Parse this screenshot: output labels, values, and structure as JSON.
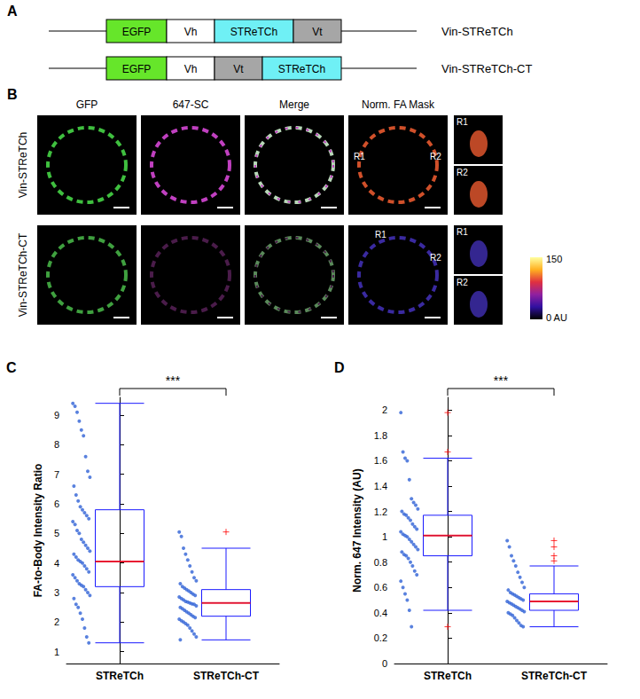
{
  "panel_A": {
    "label": "A",
    "constructs": [
      {
        "name": "Vin-STReTCh",
        "domains": [
          {
            "text": "EGFP",
            "color": "#66e62a"
          },
          {
            "text": "Vh",
            "color": "#ffffff"
          },
          {
            "text": "STReTCh",
            "color": "#6ff0f5"
          },
          {
            "text": "Vt",
            "color": "#a6a6a6"
          }
        ]
      },
      {
        "name": "Vin-STReTCh-CT",
        "domains": [
          {
            "text": "EGFP",
            "color": "#66e62a"
          },
          {
            "text": "Vh",
            "color": "#ffffff"
          },
          {
            "text": "Vt",
            "color": "#a6a6a6"
          },
          {
            "text": "STReTCh",
            "color": "#6ff0f5"
          }
        ]
      }
    ]
  },
  "panel_B": {
    "label": "B",
    "columns": [
      "GFP",
      "647-SC",
      "Merge",
      "Norm. FA Mask"
    ],
    "rows": [
      {
        "name": "Vin-STReTCh",
        "regions": [
          "R1",
          "R2"
        ]
      },
      {
        "name": "Vin-STReTCh-CT",
        "regions": [
          "R1",
          "R2"
        ]
      }
    ],
    "colorbar_labels": [
      "150",
      "0 AU"
    ]
  },
  "chart_data": [
    {
      "label": "C",
      "type": "boxplot",
      "categories": [
        "STReTCh",
        "STReTCh-CT"
      ],
      "ylabel": "FA-to-Body Intensity Ratio",
      "ylim": [
        0.6,
        9.6
      ],
      "yticks": [
        1,
        2,
        3,
        4,
        5,
        6,
        7,
        8,
        9
      ],
      "boxes": [
        [
          1.3,
          3.2,
          4.05,
          5.8,
          9.4
        ],
        [
          1.4,
          2.2,
          2.65,
          3.1,
          4.5
        ]
      ],
      "outliers": [
        [],
        [
          5.05
        ]
      ],
      "points": [
        [
          9.4,
          9.3,
          9.1,
          8.8,
          8.5,
          8.3,
          7.6,
          7.1,
          6.9,
          6.6,
          6.3,
          6.1,
          5.9,
          5.8,
          5.7,
          5.6,
          5.5,
          5.4,
          5.3,
          5.1,
          5.0,
          4.8,
          4.7,
          4.6,
          4.5,
          4.4,
          4.3,
          4.2,
          4.1,
          4.05,
          4.0,
          3.9,
          3.8,
          3.7,
          3.6,
          3.5,
          3.4,
          3.3,
          3.25,
          3.2,
          3.1,
          3.0,
          2.9,
          2.8,
          2.6,
          2.5,
          2.3,
          2.1,
          1.8,
          1.5,
          1.3
        ],
        [
          5.05,
          4.9,
          4.5,
          4.3,
          4.1,
          3.9,
          3.7,
          3.5,
          3.4,
          3.3,
          3.2,
          3.15,
          3.1,
          3.05,
          3.0,
          2.95,
          2.9,
          2.85,
          2.8,
          2.75,
          2.7,
          2.68,
          2.65,
          2.62,
          2.6,
          2.55,
          2.5,
          2.45,
          2.4,
          2.35,
          2.3,
          2.25,
          2.2,
          2.15,
          2.1,
          2.05,
          2.0,
          1.95,
          1.9,
          1.8,
          1.7,
          1.6,
          1.5,
          1.4
        ]
      ],
      "annotation": "***"
    },
    {
      "label": "D",
      "type": "boxplot",
      "categories": [
        "STReTCh",
        "STReTCh-CT"
      ],
      "ylabel": "Norm. 647 Intensity (AU)",
      "ylim": [
        0,
        2.1
      ],
      "yticks": [
        0,
        0.2,
        0.4,
        0.6,
        0.8,
        1,
        1.2,
        1.4,
        1.6,
        1.8,
        2
      ],
      "boxes": [
        [
          0.42,
          0.85,
          1.01,
          1.17,
          1.62
        ],
        [
          0.29,
          0.42,
          0.49,
          0.55,
          0.77
        ]
      ],
      "outliers": [
        [
          0.29,
          1.67,
          1.98
        ],
        [
          0.81,
          0.85,
          0.92,
          0.97
        ]
      ],
      "points": [
        [
          1.98,
          1.67,
          1.62,
          1.6,
          1.45,
          1.3,
          1.27,
          1.25,
          1.22,
          1.2,
          1.18,
          1.17,
          1.15,
          1.13,
          1.1,
          1.08,
          1.06,
          1.04,
          1.02,
          1.01,
          1.0,
          0.98,
          0.96,
          0.94,
          0.92,
          0.9,
          0.88,
          0.86,
          0.85,
          0.83,
          0.8,
          0.77,
          0.73,
          0.7,
          0.65,
          0.6,
          0.55,
          0.5,
          0.42,
          0.29
        ],
        [
          0.97,
          0.92,
          0.85,
          0.81,
          0.77,
          0.72,
          0.68,
          0.64,
          0.6,
          0.58,
          0.56,
          0.55,
          0.54,
          0.53,
          0.52,
          0.51,
          0.5,
          0.49,
          0.48,
          0.47,
          0.46,
          0.45,
          0.44,
          0.43,
          0.42,
          0.41,
          0.4,
          0.39,
          0.38,
          0.36,
          0.34,
          0.32,
          0.3,
          0.29
        ]
      ],
      "annotation": "***"
    }
  ]
}
